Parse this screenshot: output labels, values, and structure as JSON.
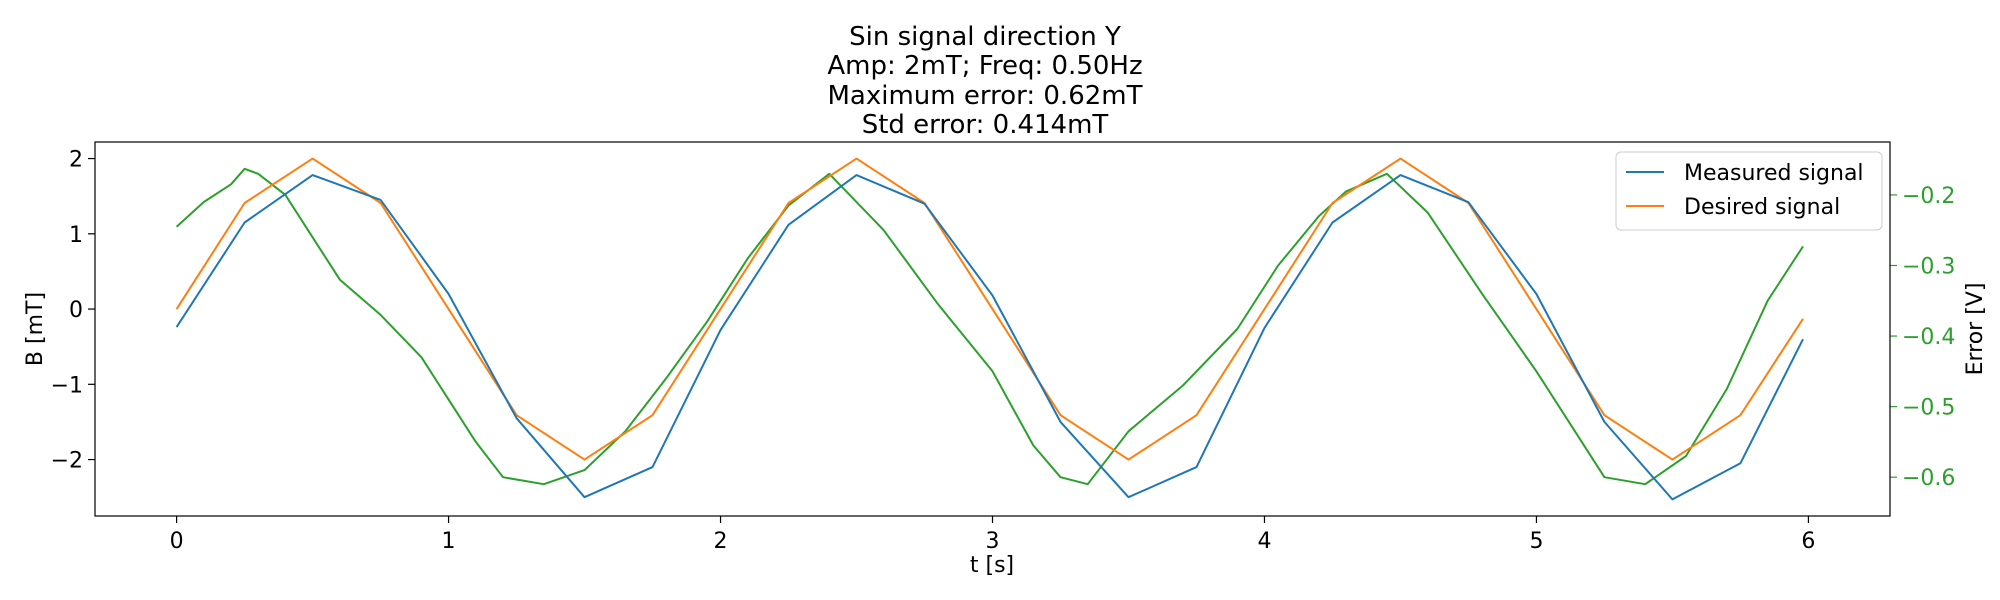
{
  "chart_data": {
    "type": "line",
    "title_lines": [
      "Sin signal direction Y",
      "Amp: 2mT; Freq: 0.50Hz",
      "Maximum error: 0.62mT",
      "Std error: 0.414mT"
    ],
    "xlabel": "t [s]",
    "ylabel": "B [mT]",
    "y2label": "Error [V]",
    "xlim": [
      -0.3,
      6.3
    ],
    "ylim": [
      -2.75,
      2.22
    ],
    "y2lim": [
      -0.655,
      -0.125
    ],
    "xticks": [
      0,
      1,
      2,
      3,
      4,
      5,
      6
    ],
    "xtick_labels": [
      "0",
      "1",
      "2",
      "3",
      "4",
      "5",
      "6"
    ],
    "yticks": [
      2,
      1,
      0,
      -1,
      -2
    ],
    "ytick_labels": [
      "2",
      "1",
      "0",
      "−1",
      "−2"
    ],
    "y2ticks": [
      -0.2,
      -0.3,
      -0.4,
      -0.5,
      -0.6
    ],
    "y2tick_labels": [
      "−0.2",
      "−0.3",
      "−0.4",
      "−0.5",
      "−0.6"
    ],
    "grid": false,
    "legend_position": "top-right",
    "colors": {
      "measured": "#1f77b4",
      "desired": "#ff7f0e",
      "error": "#2ca02c"
    },
    "series": [
      {
        "name": "Measured signal",
        "axis": "left",
        "x": [
          0.0,
          0.25,
          0.5,
          0.75,
          1.0,
          1.25,
          1.5,
          1.75,
          2.0,
          2.25,
          2.5,
          2.75,
          3.0,
          3.25,
          3.5,
          3.75,
          4.0,
          4.25,
          4.5,
          4.75,
          5.0,
          5.25,
          5.5,
          5.75,
          5.98
        ],
        "values": [
          -0.24,
          1.15,
          1.78,
          1.45,
          0.2,
          -1.45,
          -2.5,
          -2.1,
          -0.28,
          1.12,
          1.78,
          1.4,
          0.18,
          -1.5,
          -2.5,
          -2.1,
          -0.25,
          1.15,
          1.78,
          1.42,
          0.2,
          -1.5,
          -2.53,
          -2.05,
          -0.4
        ]
      },
      {
        "name": "Desired signal",
        "axis": "left",
        "x": [
          0.0,
          0.25,
          0.5,
          0.75,
          1.0,
          1.25,
          1.5,
          1.75,
          2.0,
          2.25,
          2.5,
          2.75,
          3.0,
          3.25,
          3.5,
          3.75,
          4.0,
          4.25,
          4.5,
          4.75,
          5.0,
          5.25,
          5.5,
          5.75,
          5.98
        ],
        "values": [
          0.0,
          1.41,
          2.0,
          1.41,
          0.0,
          -1.41,
          -2.0,
          -1.41,
          0.0,
          1.41,
          2.0,
          1.41,
          0.0,
          -1.41,
          -2.0,
          -1.41,
          0.0,
          1.41,
          2.0,
          1.41,
          0.0,
          -1.41,
          -2.0,
          -1.41,
          -0.13
        ]
      },
      {
        "axis": "right",
        "x": [
          0.0,
          0.1,
          0.2,
          0.25,
          0.3,
          0.4,
          0.5,
          0.6,
          0.75,
          0.9,
          1.0,
          1.1,
          1.2,
          1.35,
          1.5,
          1.65,
          1.8,
          1.95,
          2.1,
          2.25,
          2.4,
          2.6,
          2.8,
          3.0,
          3.15,
          3.25,
          3.35,
          3.5,
          3.7,
          3.9,
          4.05,
          4.2,
          4.3,
          4.45,
          4.6,
          4.8,
          5.0,
          5.15,
          5.25,
          5.4,
          5.55,
          5.7,
          5.85,
          5.98
        ],
        "values": [
          -0.245,
          -0.21,
          -0.185,
          -0.163,
          -0.17,
          -0.2,
          -0.26,
          -0.32,
          -0.37,
          -0.43,
          -0.49,
          -0.55,
          -0.6,
          -0.61,
          -0.59,
          -0.535,
          -0.46,
          -0.38,
          -0.29,
          -0.215,
          -0.17,
          -0.25,
          -0.355,
          -0.45,
          -0.555,
          -0.6,
          -0.61,
          -0.535,
          -0.47,
          -0.39,
          -0.3,
          -0.23,
          -0.195,
          -0.17,
          -0.225,
          -0.34,
          -0.45,
          -0.54,
          -0.6,
          -0.61,
          -0.57,
          -0.475,
          -0.35,
          -0.273
        ]
      }
    ]
  }
}
